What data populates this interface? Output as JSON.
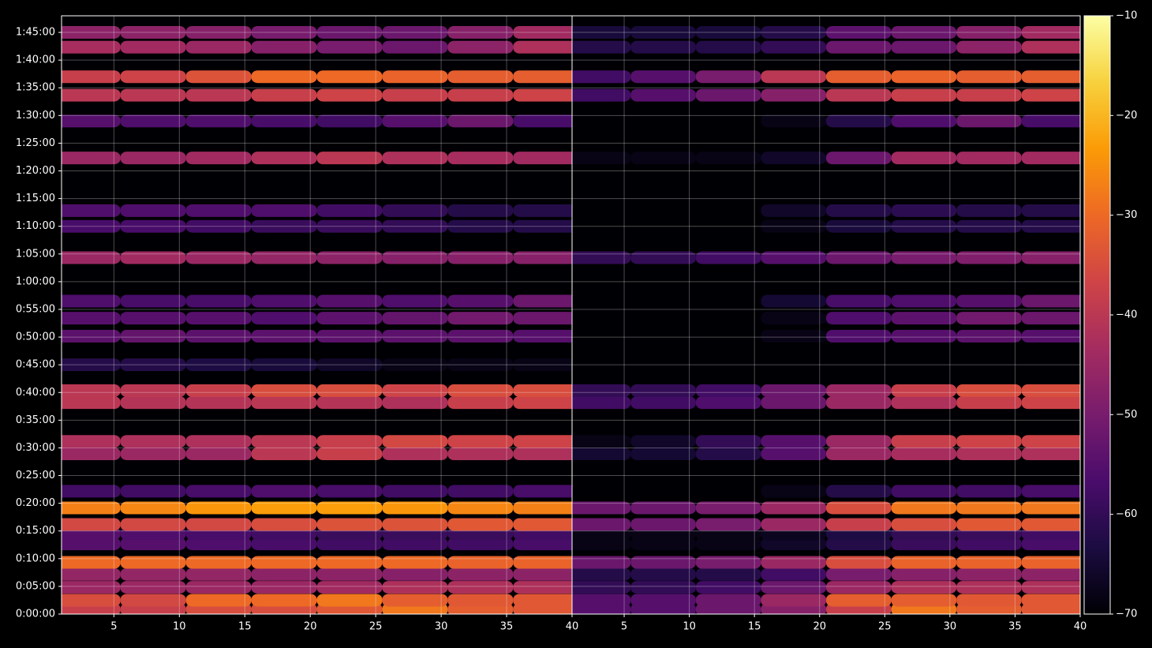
{
  "chart_data": [
    {
      "type": "heatmap",
      "x": [
        3,
        8,
        13,
        18,
        23,
        28,
        33,
        38
      ],
      "y": [
        50,
        150,
        290,
        430,
        560,
        760,
        870,
        970,
        1150,
        1330,
        1735,
        1870,
        2290,
        2420,
        2700,
        3010,
        3205,
        3390,
        3860,
        4200,
        4370,
        4940,
        5340,
        5620,
        5820,
        6140,
        6300
      ],
      "values": [
        [
          -38,
          -38,
          -35,
          -35,
          -33,
          -28,
          -32,
          -33
        ],
        [
          -35,
          -36,
          -30,
          -30,
          -28,
          -32,
          -33,
          -33
        ],
        [
          -45,
          -45,
          -45,
          -45,
          -44,
          -42,
          -42,
          -42
        ],
        [
          -46,
          -46,
          -46,
          -47,
          -47,
          -48,
          -47,
          -47
        ],
        [
          -30,
          -30,
          -30,
          -30,
          -30,
          -30,
          -31,
          -31
        ],
        [
          -55,
          -55,
          -56,
          -57,
          -58,
          -58,
          -58,
          -57
        ],
        [
          -55,
          -56,
          -57,
          -58,
          -59,
          -59,
          -59,
          -58
        ],
        [
          -36,
          -36,
          -36,
          -35,
          -34,
          -34,
          -33,
          -33
        ],
        [
          -27,
          -26,
          -24,
          -23,
          -23,
          -24,
          -26,
          -27
        ],
        [
          -58,
          -58,
          -57,
          -56,
          -57,
          -58,
          -58,
          -57
        ],
        [
          -45,
          -45,
          -45,
          -40,
          -38,
          -42,
          -42,
          -42
        ],
        [
          -42,
          -42,
          -42,
          -40,
          -38,
          -36,
          -37,
          -37
        ],
        [
          -40,
          -41,
          -41,
          -40,
          -41,
          -42,
          -38,
          -37
        ],
        [
          -40,
          -40,
          -38,
          -35,
          -35,
          -37,
          -35,
          -35
        ],
        [
          -62,
          -62,
          -63,
          -64,
          -66,
          -68,
          -68,
          -68
        ],
        [
          -54,
          -53,
          -54,
          -54,
          -54,
          -54,
          -54,
          -55
        ],
        [
          -55,
          -55,
          -55,
          -56,
          -54,
          -53,
          -51,
          -52
        ],
        [
          -56,
          -57,
          -57,
          -56,
          -55,
          -56,
          -55,
          -52
        ],
        [
          -45,
          -44,
          -45,
          -46,
          -47,
          -48,
          -48,
          -48
        ],
        [
          -57,
          -57,
          -58,
          -59,
          -59,
          -60,
          -62,
          -62
        ],
        [
          -56,
          -56,
          -56,
          -56,
          -58,
          -60,
          -62,
          -62
        ],
        [
          -45,
          -45,
          -44,
          -42,
          -40,
          -42,
          -43,
          -44
        ],
        [
          -55,
          -56,
          -56,
          -57,
          -58,
          -55,
          -52,
          -57
        ],
        [
          -40,
          -40,
          -40,
          -38,
          -37,
          -38,
          -38,
          -37
        ],
        [
          -38,
          -37,
          -34,
          -30,
          -30,
          -31,
          -32,
          -32
        ],
        [
          -43,
          -44,
          -45,
          -48,
          -50,
          -52,
          -47,
          -42
        ],
        [
          -47,
          -47,
          -48,
          -50,
          -52,
          -52,
          -48,
          -44
        ]
      ],
      "xlim": [
        1,
        40
      ],
      "xticks": [
        5,
        10,
        15,
        20,
        25,
        30,
        35,
        40
      ],
      "ylim": [
        0,
        6480
      ],
      "yticks": [
        {
          "value": 0,
          "label": "0:00:00"
        },
        {
          "value": 300,
          "label": "0:05:00"
        },
        {
          "value": 600,
          "label": "0:10:00"
        },
        {
          "value": 900,
          "label": "0:15:00"
        },
        {
          "value": 1200,
          "label": "0:20:00"
        },
        {
          "value": 1500,
          "label": "0:25:00"
        },
        {
          "value": 1800,
          "label": "0:30:00"
        },
        {
          "value": 2100,
          "label": "0:35:00"
        },
        {
          "value": 2400,
          "label": "0:40:00"
        },
        {
          "value": 2700,
          "label": "0:45:00"
        },
        {
          "value": 3000,
          "label": "0:50:00"
        },
        {
          "value": 3300,
          "label": "0:55:00"
        },
        {
          "value": 3600,
          "label": "1:00:00"
        },
        {
          "value": 3900,
          "label": "1:05:00"
        },
        {
          "value": 4200,
          "label": "1:10:00"
        },
        {
          "value": 4500,
          "label": "1:15:00"
        },
        {
          "value": 4800,
          "label": "1:20:00"
        },
        {
          "value": 5100,
          "label": "1:25:00"
        },
        {
          "value": 5400,
          "label": "1:30:00"
        },
        {
          "value": 5700,
          "label": "1:35:00"
        },
        {
          "value": 6000,
          "label": "1:40:00"
        },
        {
          "value": 6300,
          "label": "1:45:00"
        }
      ],
      "grid": true
    },
    {
      "type": "heatmap",
      "x": [
        3,
        8,
        13,
        18,
        23,
        28,
        33,
        38
      ],
      "y": [
        50,
        150,
        290,
        430,
        560,
        760,
        870,
        970,
        1150,
        1330,
        1735,
        1870,
        2290,
        2420,
        2700,
        3010,
        3205,
        3390,
        3860,
        4200,
        4370,
        4940,
        5340,
        5620,
        5820,
        6140,
        6300
      ],
      "values": [
        [
          -55,
          -55,
          -52,
          -48,
          -38,
          -28,
          -32,
          -33
        ],
        [
          -55,
          -55,
          -52,
          -45,
          -32,
          -32,
          -33,
          -33
        ],
        [
          -60,
          -60,
          -58,
          -52,
          -45,
          -42,
          -42,
          -42
        ],
        [
          -62,
          -62,
          -62,
          -58,
          -50,
          -48,
          -47,
          -47
        ],
        [
          -52,
          -52,
          -50,
          -45,
          -35,
          -31,
          -31,
          -31
        ],
        [
          -68,
          -68,
          -68,
          -66,
          -62,
          -59,
          -58,
          -57
        ],
        [
          -68,
          -68,
          -68,
          -67,
          -63,
          -60,
          -59,
          -58
        ],
        [
          -52,
          -52,
          -50,
          -45,
          -38,
          -35,
          -33,
          -33
        ],
        [
          -52,
          -52,
          -50,
          -45,
          -35,
          -28,
          -28,
          -28
        ],
        [
          -70,
          -70,
          -70,
          -68,
          -62,
          -58,
          -58,
          -57
        ],
        [
          -65,
          -65,
          -62,
          -55,
          -45,
          -43,
          -42,
          -42
        ],
        [
          -68,
          -66,
          -60,
          -55,
          -45,
          -38,
          -37,
          -37
        ],
        [
          -58,
          -58,
          -56,
          -52,
          -45,
          -42,
          -38,
          -37
        ],
        [
          -60,
          -60,
          -58,
          -52,
          -45,
          -38,
          -35,
          -35
        ],
        [
          -70,
          -70,
          -70,
          -70,
          -70,
          -70,
          -70,
          -70
        ],
        [
          -70,
          -70,
          -70,
          -68,
          -56,
          -55,
          -54,
          -55
        ],
        [
          -70,
          -70,
          -70,
          -68,
          -56,
          -54,
          -51,
          -52
        ],
        [
          -70,
          -70,
          -70,
          -65,
          -57,
          -56,
          -55,
          -52
        ],
        [
          -60,
          -60,
          -58,
          -55,
          -52,
          -50,
          -49,
          -48
        ],
        [
          -70,
          -70,
          -70,
          -68,
          -64,
          -62,
          -62,
          -62
        ],
        [
          -70,
          -70,
          -70,
          -66,
          -62,
          -61,
          -62,
          -62
        ],
        [
          -68,
          -68,
          -68,
          -66,
          -52,
          -44,
          -44,
          -44
        ],
        [
          -70,
          -70,
          -70,
          -68,
          -62,
          -56,
          -52,
          -57
        ],
        [
          -58,
          -55,
          -52,
          -48,
          -40,
          -38,
          -38,
          -37
        ],
        [
          -58,
          -55,
          -50,
          -40,
          -32,
          -31,
          -32,
          -32
        ],
        [
          -62,
          -62,
          -62,
          -60,
          -52,
          -52,
          -47,
          -42
        ],
        [
          -64,
          -64,
          -64,
          -62,
          -54,
          -52,
          -48,
          -44
        ]
      ],
      "xlim": [
        1,
        40
      ],
      "xticks": [
        5,
        10,
        15,
        20,
        25,
        30,
        35,
        40
      ],
      "ylim": [
        0,
        6480
      ],
      "yticks": [
        0,
        300,
        600,
        900,
        1200,
        1500,
        1800,
        2100,
        2400,
        2700,
        3000,
        3300,
        3600,
        3900,
        4200,
        4500,
        4800,
        5100,
        5400,
        5700,
        6000,
        6300
      ],
      "grid": true,
      "colorbar": {
        "clim": [
          -70,
          -10
        ],
        "ticks": [
          {
            "value": -70,
            "label": "−70"
          },
          {
            "value": -60,
            "label": "−60"
          },
          {
            "value": -50,
            "label": "−50"
          },
          {
            "value": -40,
            "label": "−40"
          },
          {
            "value": -30,
            "label": "−30"
          },
          {
            "value": -20,
            "label": "−20"
          },
          {
            "value": -10,
            "label": "−10"
          }
        ],
        "colors": [
          "#000004",
          "#1b0c41",
          "#4a0c6b",
          "#781c6d",
          "#a52c60",
          "#cf4446",
          "#ed6925",
          "#fb9b06",
          "#f7d13d",
          "#fcffa4"
        ]
      }
    }
  ]
}
